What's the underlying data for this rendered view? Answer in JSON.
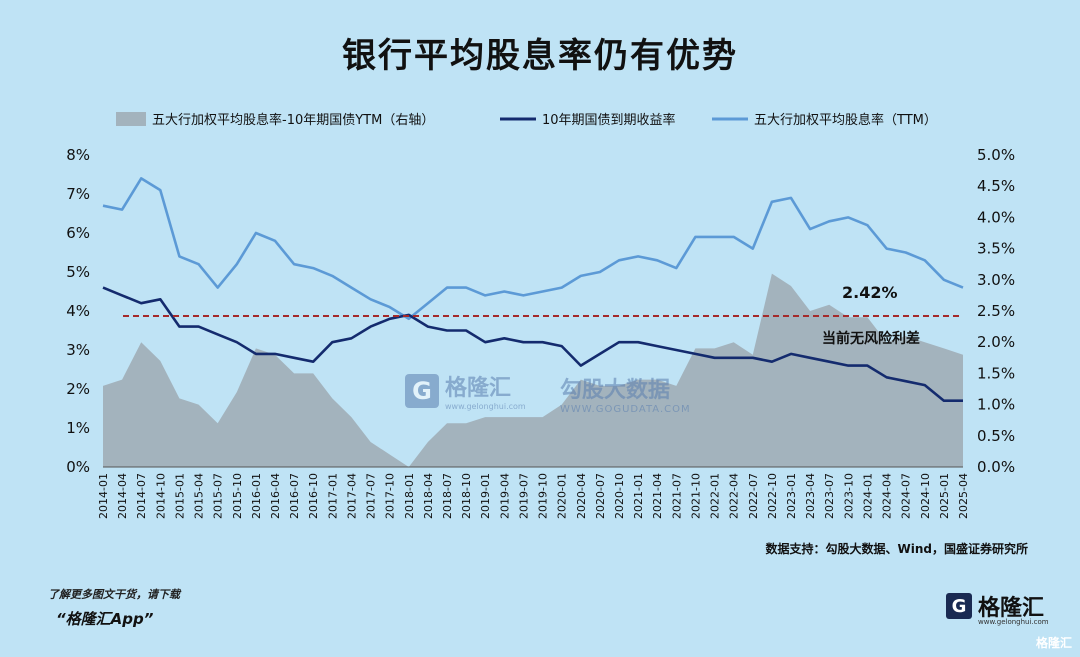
{
  "title": "银行平均股息率仍有优势",
  "source_note": "数据支持：勾股大数据、Wind，国盛证券研究所",
  "footer": {
    "note": "了解更多图文干货，请下载",
    "app": "“格隆汇App”"
  },
  "brand": {
    "mark": "G",
    "name": "格隆汇",
    "sub": "www.gelonghui.com",
    "corner": "格隆汇"
  },
  "watermark": {
    "a_mark": "G",
    "a_name": "格隆汇",
    "a_sub": "www.gelonghui.com",
    "b_name": "勾股大数据",
    "b_sub": "WWW.GOGUDATA.COM"
  },
  "colors": {
    "background": "#bfe3f5",
    "area": "#a3b3bd",
    "yield10y": "#142b6e",
    "ttm": "#5c9ad6",
    "refline": "#a52a2a"
  },
  "chart_data": {
    "type": "line",
    "legend": [
      "五大行加权平均股息率-10年期国债YTM（右轴）",
      "10年期国债到期收益率",
      "五大行加权平均股息率（TTM）"
    ],
    "left_axis": {
      "min": 0,
      "max": 8,
      "ticks": [
        "0%",
        "1%",
        "2%",
        "3%",
        "4%",
        "5%",
        "6%",
        "7%",
        "8%"
      ]
    },
    "right_axis": {
      "min": 0,
      "max": 5,
      "ticks": [
        "0.0%",
        "0.5%",
        "1.0%",
        "1.5%",
        "2.0%",
        "2.5%",
        "3.0%",
        "3.5%",
        "4.0%",
        "4.5%",
        "5.0%"
      ]
    },
    "categories": [
      "2014-01",
      "2014-04",
      "2014-07",
      "2014-10",
      "2015-01",
      "2015-04",
      "2015-07",
      "2015-10",
      "2016-01",
      "2016-04",
      "2016-07",
      "2016-10",
      "2017-01",
      "2017-04",
      "2017-07",
      "2017-10",
      "2018-01",
      "2018-04",
      "2018-07",
      "2018-10",
      "2019-01",
      "2019-04",
      "2019-07",
      "2019-10",
      "2020-01",
      "2020-04",
      "2020-07",
      "2020-10",
      "2021-01",
      "2021-04",
      "2021-07",
      "2021-10",
      "2022-01",
      "2022-04",
      "2022-07",
      "2022-10",
      "2023-01",
      "2023-04",
      "2023-07",
      "2023-10",
      "2024-01",
      "2024-04",
      "2024-07",
      "2024-10",
      "2025-01",
      "2025-04"
    ],
    "series": [
      {
        "name": "10年期国债到期收益率",
        "axis": "left",
        "values": [
          4.6,
          4.4,
          4.2,
          4.3,
          3.6,
          3.6,
          3.4,
          3.2,
          2.9,
          2.9,
          2.8,
          2.7,
          3.2,
          3.3,
          3.6,
          3.8,
          3.9,
          3.6,
          3.5,
          3.5,
          3.2,
          3.3,
          3.2,
          3.2,
          3.1,
          2.6,
          2.9,
          3.2,
          3.2,
          3.1,
          3.0,
          2.9,
          2.8,
          2.8,
          2.8,
          2.7,
          2.9,
          2.8,
          2.7,
          2.6,
          2.6,
          2.3,
          2.2,
          2.1,
          1.7,
          1.7
        ]
      },
      {
        "name": "五大行加权平均股息率（TTM）",
        "axis": "left",
        "values": [
          6.7,
          6.6,
          7.4,
          7.1,
          5.4,
          5.2,
          4.6,
          5.2,
          6.0,
          5.8,
          5.2,
          5.1,
          4.9,
          4.6,
          4.3,
          4.1,
          3.8,
          4.2,
          4.6,
          4.6,
          4.4,
          4.5,
          4.4,
          4.5,
          4.6,
          4.9,
          5.0,
          5.3,
          5.4,
          5.3,
          5.1,
          5.9,
          5.9,
          5.9,
          5.6,
          6.8,
          6.9,
          6.1,
          6.3,
          6.4,
          6.2,
          5.6,
          5.5,
          5.3,
          4.8,
          4.6
        ]
      },
      {
        "name": "五大行加权平均股息率-10年期国债YTM（右轴）",
        "axis": "right",
        "values": [
          1.3,
          1.4,
          2.0,
          1.7,
          1.1,
          1.0,
          0.7,
          1.2,
          1.9,
          1.8,
          1.5,
          1.5,
          1.1,
          0.8,
          0.4,
          0.2,
          0.0,
          0.4,
          0.7,
          0.7,
          0.8,
          0.8,
          0.8,
          0.8,
          1.0,
          1.4,
          1.3,
          1.3,
          1.4,
          1.4,
          1.3,
          1.9,
          1.9,
          2.0,
          1.8,
          3.1,
          2.9,
          2.5,
          2.6,
          2.4,
          2.4,
          2.0,
          2.1,
          2.0,
          1.9,
          1.8
        ]
      }
    ],
    "reference_line": {
      "value": 2.42,
      "axis": "right",
      "label_value": "2.42%",
      "label_text": "当前无风险利差"
    }
  }
}
